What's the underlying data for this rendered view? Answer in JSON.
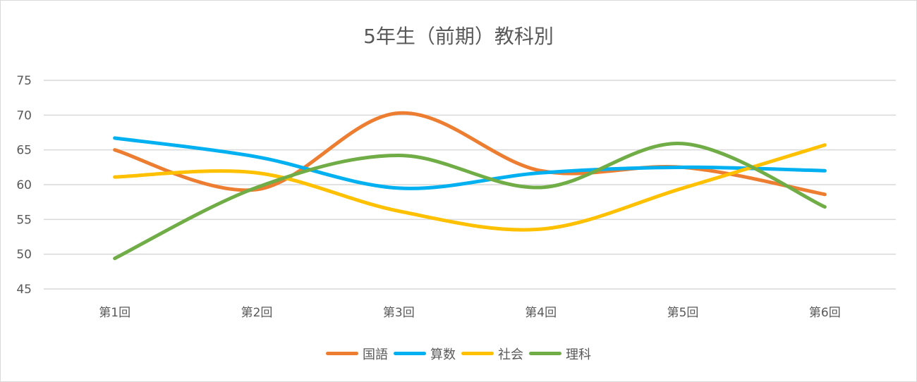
{
  "chart_data": {
    "type": "line",
    "smooth": true,
    "title": "5年生（前期）教科別",
    "categories": [
      "第1回",
      "第2回",
      "第3回",
      "第4回",
      "第5回",
      "第6回"
    ],
    "ylim": [
      45,
      75
    ],
    "yticks": [
      45,
      50,
      55,
      60,
      65,
      70,
      75
    ],
    "grid": true,
    "legend_position": "bottom",
    "series": [
      {
        "name": "国語",
        "color": "#ED7D31",
        "values": [
          65,
          59.3,
          70.3,
          62,
          62.5,
          58.6
        ]
      },
      {
        "name": "算数",
        "color": "#00B0F0",
        "values": [
          66.7,
          64.0,
          59.5,
          61.7,
          62.5,
          62.0
        ]
      },
      {
        "name": "社会",
        "color": "#FFC000",
        "values": [
          61.1,
          61.7,
          56.2,
          53.6,
          59.5,
          65.7
        ]
      },
      {
        "name": "理科",
        "color": "#70AD47",
        "values": [
          49.4,
          59.6,
          64.2,
          59.6,
          65.9,
          56.8
        ]
      }
    ]
  }
}
